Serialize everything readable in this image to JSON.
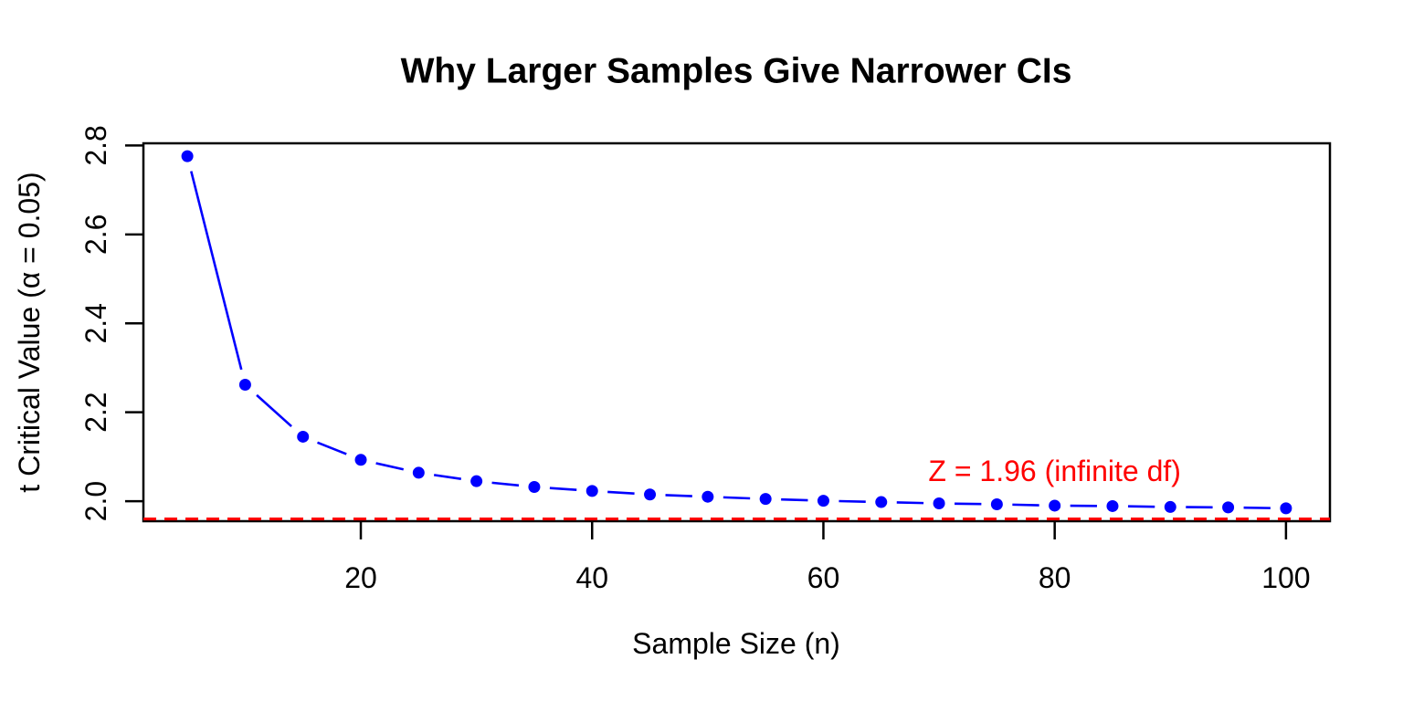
{
  "page": {
    "background": "#FFFFFF"
  },
  "chart_data": {
    "type": "line",
    "title": "Why Larger Samples Give Narrower CIs",
    "xlabel": "Sample Size (n)",
    "ylabel": "t Critical Value (α = 0.05)",
    "grid": false,
    "legend": "none",
    "background": "#FFFFFF",
    "axis_color": "#000000",
    "xlim": [
      1.2,
      103.8
    ],
    "ylim": [
      1.955,
      2.805
    ],
    "x_ticks": {
      "values": [
        20,
        40,
        60,
        80,
        100
      ],
      "labels": [
        "20",
        "40",
        "60",
        "80",
        "100"
      ]
    },
    "y_ticks": {
      "values": [
        2.0,
        2.2,
        2.4,
        2.6,
        2.8
      ],
      "labels": [
        "2.0",
        "2.2",
        "2.4",
        "2.6",
        "2.8"
      ]
    },
    "series": [
      {
        "name": "t critical value",
        "color": "#0000FF",
        "marker": "filled-circle",
        "line_style": "solid segments with gaps around points (R type='b')",
        "x": [
          5,
          10,
          15,
          20,
          25,
          30,
          35,
          40,
          45,
          50,
          55,
          60,
          65,
          70,
          75,
          80,
          85,
          90,
          95,
          100
        ],
        "y": [
          2.776,
          2.262,
          2.145,
          2.093,
          2.064,
          2.045,
          2.032,
          2.023,
          2.015,
          2.01,
          2.005,
          2.001,
          1.998,
          1.995,
          1.993,
          1.99,
          1.989,
          1.987,
          1.986,
          1.984
        ]
      }
    ],
    "reference_line": {
      "y": 1.96,
      "color": "#FF0000",
      "style": "dashed",
      "label": "Z = 1.96 (infinite df)",
      "label_pos": {
        "x": 80,
        "y": 2.068
      }
    }
  }
}
